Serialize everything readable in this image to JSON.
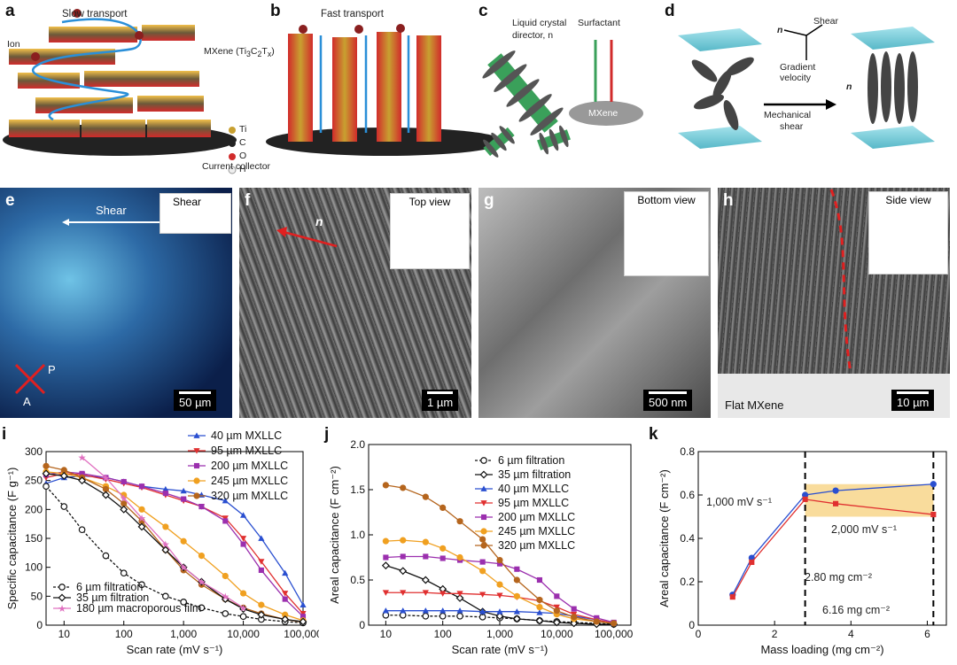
{
  "panels": {
    "a": {
      "label": "a",
      "slow": "Slow transport",
      "ion": "Ion",
      "mxene": "MXene (Ti",
      "mxene_sub": "3",
      "mxene_mid": "C",
      "mxene_sub2": "2",
      "mxene_end": "T",
      "mxene_subx": "x",
      "mxene_close": ")",
      "legend": [
        "Ti",
        "C",
        "O",
        "H"
      ],
      "collector": "Current collector"
    },
    "b": {
      "label": "b",
      "fast": "Fast transport"
    },
    "c": {
      "label": "c",
      "lc": "Liquid crystal",
      "director": "director, n",
      "surfactant": "Surfactant",
      "mxene": "MXene"
    },
    "d": {
      "label": "d",
      "shear": "Shear",
      "n": "n",
      "gradient": "Gradient",
      "velocity": "velocity",
      "mech": "Mechanical",
      "mech2": "shear",
      "n2": "n"
    },
    "e": {
      "label": "e",
      "shear": "Shear",
      "inset": "Shear",
      "p": "P",
      "a": "A",
      "scale": "50 µm"
    },
    "f": {
      "label": "f",
      "inset": "Top view",
      "n": "n",
      "scale": "1 µm"
    },
    "g": {
      "label": "g",
      "inset": "Bottom view",
      "scale": "500 nm"
    },
    "h": {
      "label": "h",
      "inset": "Side view",
      "flat": "Flat MXene",
      "scale": "10 µm"
    },
    "i": {
      "label": "i"
    },
    "j": {
      "label": "j"
    },
    "k": {
      "label": "k",
      "a1": "1,000 mV s⁻¹",
      "a2": "2,000 mV s⁻¹",
      "a3": "2.80 mg cm⁻²",
      "a4": "6.16 mg cm⁻²"
    }
  },
  "colors": {
    "mxene_red": "#d12b2b",
    "ti_gold": "#c8a030",
    "blue": "#2a5fbf",
    "cyan": "#7fd0dc"
  },
  "chart_data": [
    {
      "id": "i",
      "type": "line",
      "xscale": "log",
      "xlabel": "Scan rate (mV s⁻¹)",
      "ylabel": "Specific capacitance (F g⁻¹)",
      "xlim": [
        5,
        100000
      ],
      "ylim": [
        0,
        300
      ],
      "xticks": [
        "10",
        "100",
        "1,000",
        "10,000",
        "100,000"
      ],
      "yticks": [
        "0",
        "50",
        "100",
        "150",
        "200",
        "250",
        "300"
      ],
      "series": [
        {
          "name": "40 µm MXLLC",
          "color": "#2a4fd0",
          "marker": "triangle",
          "x": [
            5,
            10,
            20,
            50,
            100,
            200,
            500,
            1000,
            2000,
            5000,
            10000,
            20000,
            50000,
            100000
          ],
          "y": [
            245,
            255,
            258,
            255,
            248,
            240,
            235,
            232,
            225,
            215,
            190,
            150,
            90,
            35
          ]
        },
        {
          "name": "95 µm MXLLC",
          "color": "#e03030",
          "marker": "down",
          "x": [
            5,
            10,
            20,
            50,
            100,
            200,
            500,
            1000,
            2000,
            5000,
            10000,
            20000,
            50000,
            100000
          ],
          "y": [
            255,
            262,
            260,
            252,
            245,
            238,
            225,
            215,
            205,
            185,
            150,
            110,
            55,
            20
          ]
        },
        {
          "name": "200 µm MXLLC",
          "color": "#9b2fae",
          "marker": "square",
          "x": [
            5,
            10,
            20,
            50,
            100,
            200,
            500,
            1000,
            2000,
            5000,
            10000,
            20000,
            50000,
            100000
          ],
          "y": [
            260,
            265,
            262,
            255,
            248,
            240,
            228,
            218,
            205,
            180,
            140,
            95,
            45,
            15
          ]
        },
        {
          "name": "245 µm MXLLC",
          "color": "#f0a020",
          "marker": "circle",
          "x": [
            5,
            10,
            20,
            50,
            100,
            200,
            500,
            1000,
            2000,
            5000,
            10000,
            20000,
            50000,
            100000
          ],
          "y": [
            265,
            262,
            255,
            240,
            225,
            200,
            170,
            145,
            120,
            85,
            55,
            35,
            18,
            8
          ]
        },
        {
          "name": "320 µm MXLLC",
          "color": "#b5651d",
          "marker": "circle",
          "x": [
            5,
            10,
            20,
            50,
            100,
            200,
            500,
            1000,
            2000,
            5000,
            10000,
            20000,
            50000,
            100000
          ],
          "y": [
            275,
            268,
            255,
            235,
            210,
            180,
            130,
            95,
            70,
            45,
            30,
            20,
            10,
            5
          ]
        },
        {
          "name": "6 µm filtration",
          "color": "#111111",
          "marker": "open-circle",
          "dash": true,
          "x": [
            5,
            10,
            20,
            50,
            100,
            200,
            500,
            1000,
            2000,
            5000,
            10000,
            20000,
            50000,
            100000
          ],
          "y": [
            240,
            205,
            165,
            120,
            90,
            70,
            50,
            40,
            30,
            20,
            15,
            10,
            6,
            4
          ]
        },
        {
          "name": "35 µm filtration",
          "color": "#111111",
          "marker": "open-diamond",
          "x": [
            5,
            10,
            20,
            50,
            100,
            200,
            500,
            1000,
            2000,
            5000,
            10000,
            20000,
            50000,
            100000
          ],
          "y": [
            262,
            258,
            250,
            225,
            200,
            170,
            130,
            100,
            75,
            45,
            28,
            18,
            10,
            6
          ]
        },
        {
          "name": "180 µm macroporous film",
          "color": "#e070c0",
          "marker": "star",
          "x": [
            20,
            50,
            100,
            200,
            500,
            1000,
            2000,
            5000,
            10000
          ],
          "y": [
            290,
            255,
            220,
            185,
            140,
            100,
            75,
            50,
            30
          ]
        }
      ],
      "legend_top": [
        "40 µm MXLLC",
        "95 µm MXLLC",
        "200 µm MXLLC",
        "245 µm MXLLC",
        "320 µm MXLLC"
      ],
      "legend_bottom": [
        "6 µm filtration",
        "35 µm filtration",
        "180 µm macroporous film"
      ]
    },
    {
      "id": "j",
      "type": "line",
      "xscale": "log",
      "xlabel": "Scan rate (mV s⁻¹)",
      "ylabel": "Areal capacitance (F cm⁻²)",
      "xlim": [
        5,
        200000
      ],
      "ylim": [
        0,
        2.0
      ],
      "xticks": [
        "10",
        "100",
        "1,000",
        "10,000",
        "100,000"
      ],
      "yticks": [
        "0",
        "0.5",
        "1.0",
        "1.5",
        "2.0"
      ],
      "series": [
        {
          "name": "6 µm filtration",
          "color": "#111111",
          "marker": "open-circle",
          "dash": true,
          "x": [
            10,
            20,
            50,
            100,
            200,
            500,
            1000,
            2000,
            5000,
            10000,
            20000,
            50000,
            100000
          ],
          "y": [
            0.11,
            0.11,
            0.1,
            0.1,
            0.1,
            0.09,
            0.08,
            0.07,
            0.05,
            0.04,
            0.03,
            0.02,
            0.01
          ]
        },
        {
          "name": "35 µm filtration",
          "color": "#111111",
          "marker": "open-diamond",
          "x": [
            10,
            20,
            50,
            100,
            200,
            500,
            1000,
            2000,
            5000,
            10000,
            20000,
            50000,
            100000
          ],
          "y": [
            0.66,
            0.6,
            0.5,
            0.4,
            0.3,
            0.15,
            0.1,
            0.07,
            0.05,
            0.03,
            0.02,
            0.01,
            0.01
          ]
        },
        {
          "name": "40 µm MXLLC",
          "color": "#2a4fd0",
          "marker": "triangle",
          "x": [
            10,
            20,
            50,
            100,
            200,
            500,
            1000,
            2000,
            5000,
            10000,
            20000,
            50000,
            100000
          ],
          "y": [
            0.16,
            0.16,
            0.16,
            0.16,
            0.16,
            0.15,
            0.15,
            0.15,
            0.14,
            0.13,
            0.1,
            0.06,
            0.02
          ]
        },
        {
          "name": "95 µm MXLLC",
          "color": "#e03030",
          "marker": "down",
          "x": [
            10,
            20,
            50,
            100,
            200,
            500,
            1000,
            2000,
            5000,
            10000,
            20000,
            50000,
            100000
          ],
          "y": [
            0.36,
            0.36,
            0.36,
            0.35,
            0.35,
            0.34,
            0.33,
            0.31,
            0.27,
            0.2,
            0.12,
            0.06,
            0.02
          ]
        },
        {
          "name": "200 µm MXLLC",
          "color": "#9b2fae",
          "marker": "square",
          "x": [
            10,
            20,
            50,
            100,
            200,
            500,
            1000,
            2000,
            5000,
            10000,
            20000,
            50000,
            100000
          ],
          "y": [
            0.75,
            0.76,
            0.76,
            0.74,
            0.72,
            0.7,
            0.68,
            0.62,
            0.5,
            0.32,
            0.18,
            0.08,
            0.03
          ]
        },
        {
          "name": "245 µm MXLLC",
          "color": "#f0a020",
          "marker": "circle",
          "x": [
            10,
            20,
            50,
            100,
            200,
            500,
            1000,
            2000,
            5000,
            10000,
            20000,
            50000,
            100000
          ],
          "y": [
            0.93,
            0.94,
            0.92,
            0.85,
            0.75,
            0.6,
            0.45,
            0.32,
            0.2,
            0.12,
            0.07,
            0.04,
            0.02
          ]
        },
        {
          "name": "320 µm MXLLC",
          "color": "#b5651d",
          "marker": "circle",
          "x": [
            10,
            20,
            50,
            100,
            200,
            500,
            1000,
            2000,
            5000,
            10000,
            20000,
            50000,
            100000
          ],
          "y": [
            1.55,
            1.52,
            1.42,
            1.3,
            1.15,
            0.95,
            0.72,
            0.5,
            0.28,
            0.16,
            0.09,
            0.04,
            0.02
          ]
        }
      ],
      "legend": [
        "6 µm filtration",
        "35 µm filtration",
        "40 µm MXLLC",
        "95 µm MXLLC",
        "200 µm MXLLC",
        "245 µm MXLLC",
        "320 µm MXLLC"
      ]
    },
    {
      "id": "k",
      "type": "line",
      "xscale": "linear",
      "xlabel": "Mass loading (mg cm⁻²)",
      "ylabel": "Areal capacitance (F cm⁻²)",
      "xlim": [
        0,
        6.5
      ],
      "ylim": [
        0,
        0.8
      ],
      "xticks": [
        "0",
        "2",
        "4",
        "6"
      ],
      "xtick_values": [
        0,
        2,
        4,
        6
      ],
      "yticks": [
        "0",
        "0.2",
        "0.4",
        "0.6",
        "0.8"
      ],
      "ytick_values": [
        0,
        0.2,
        0.4,
        0.6,
        0.8
      ],
      "vlines": [
        2.8,
        6.16
      ],
      "shade": {
        "x": [
          2.8,
          6.16
        ],
        "y": [
          0.5,
          0.65
        ],
        "color": "#f9dc9c"
      },
      "series": [
        {
          "name": "1,000 mV s⁻¹",
          "color": "#2a4fd0",
          "marker": "circle",
          "x": [
            0.9,
            1.4,
            2.8,
            3.6,
            6.16
          ],
          "y": [
            0.14,
            0.31,
            0.6,
            0.62,
            0.65
          ]
        },
        {
          "name": "2,000 mV s⁻¹",
          "color": "#e03030",
          "marker": "square",
          "x": [
            0.9,
            1.4,
            2.8,
            3.6,
            6.16
          ],
          "y": [
            0.13,
            0.29,
            0.58,
            0.56,
            0.51
          ]
        }
      ]
    }
  ]
}
